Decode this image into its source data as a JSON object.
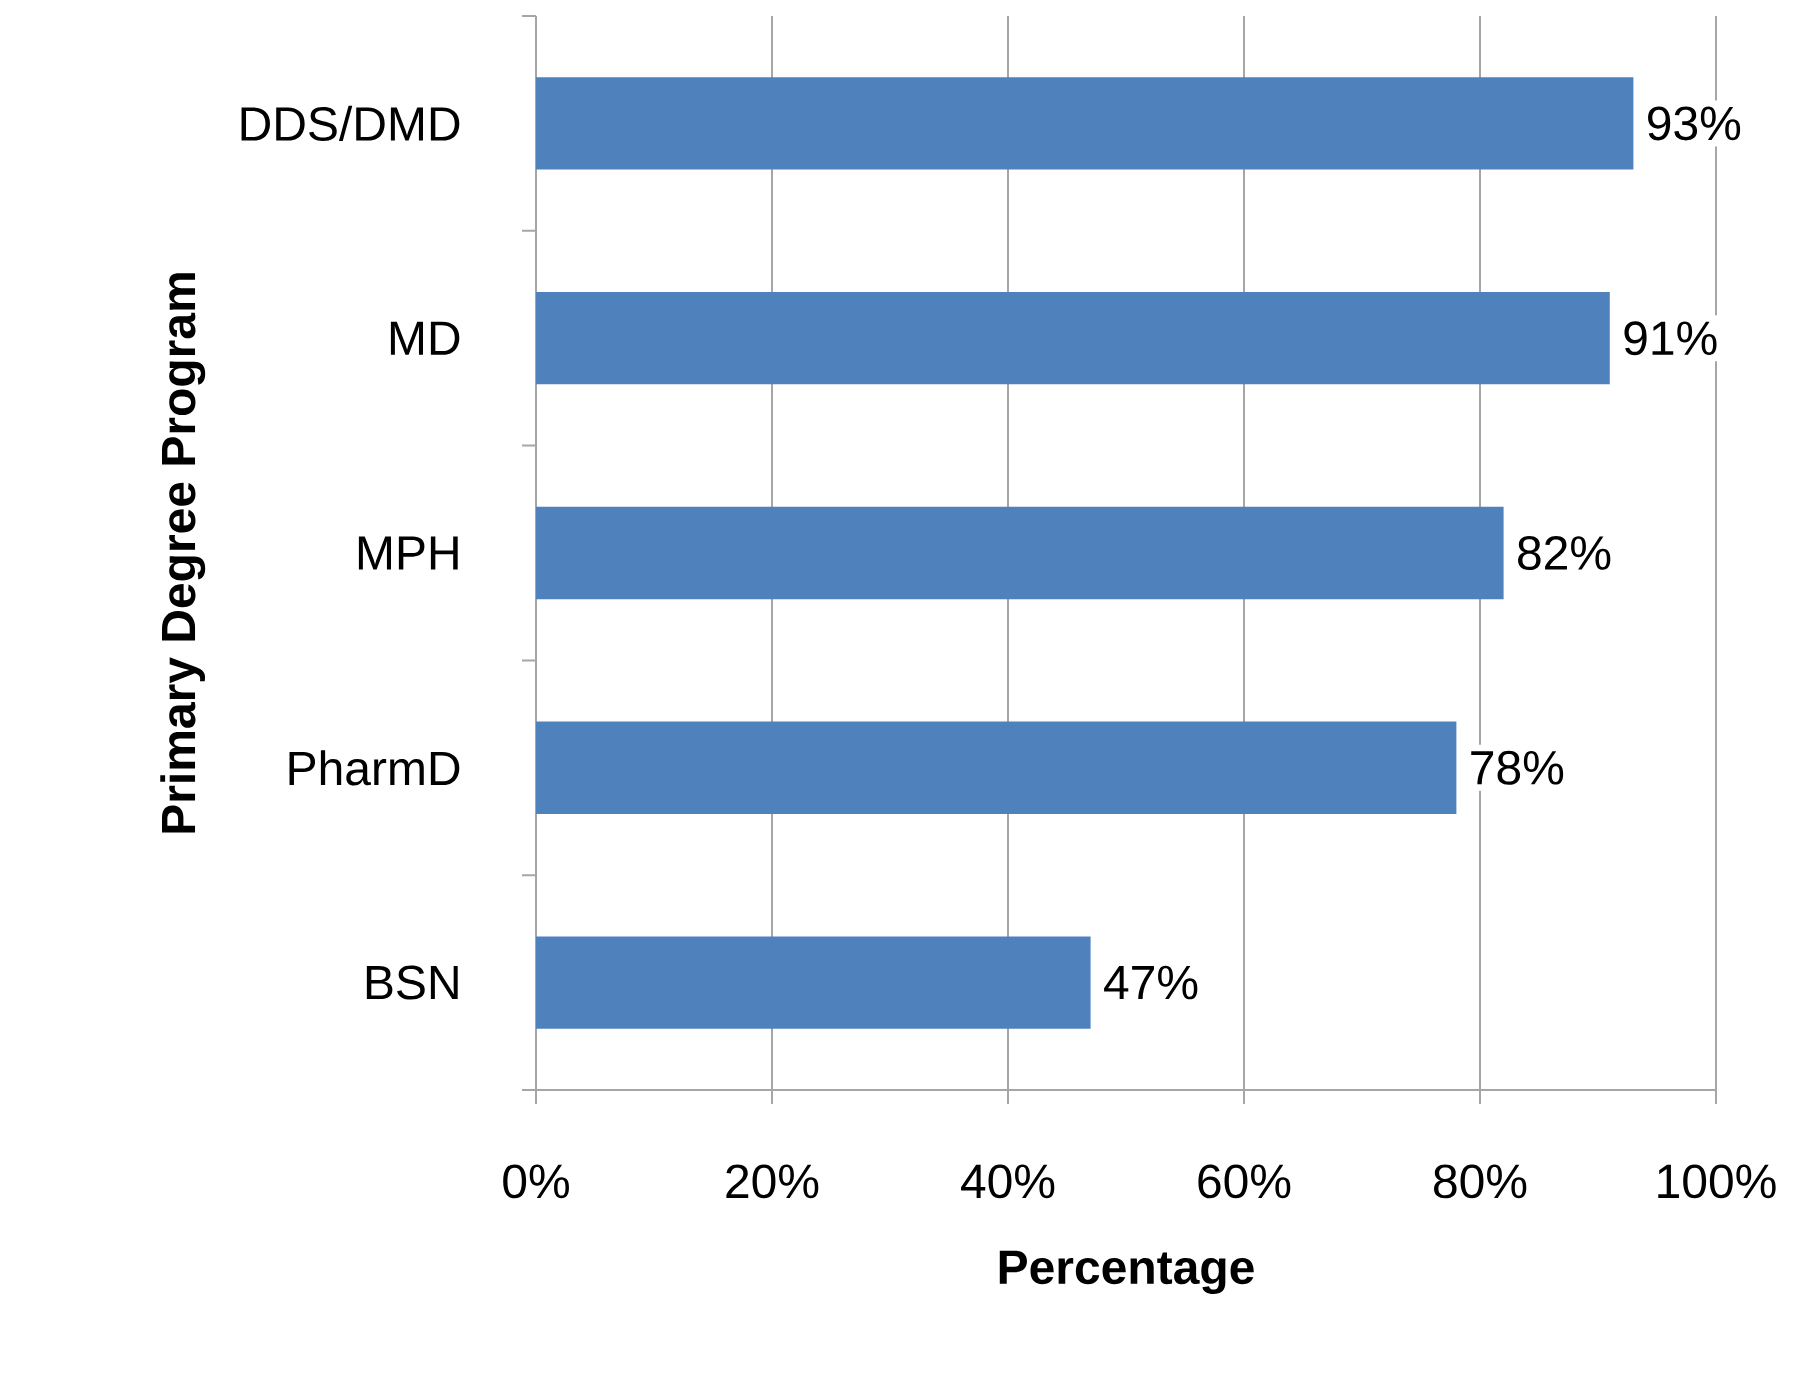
{
  "chart_data": {
    "type": "bar",
    "orientation": "horizontal",
    "xlabel": "Percentage",
    "ylabel": "Primary Degree Program",
    "categories": [
      "DDS/DMD",
      "MD",
      "MPH",
      "PharmD",
      "BSN"
    ],
    "values": [
      93,
      91,
      82,
      78,
      47
    ],
    "value_labels": [
      "93%",
      "91%",
      "82%",
      "78%",
      "47%"
    ],
    "color": "#4f81bd",
    "xlim": [
      0,
      100
    ],
    "xticks": [
      {
        "value": 0,
        "label": "0%"
      },
      {
        "value": 20,
        "label": "20%"
      },
      {
        "value": 40,
        "label": "40%"
      },
      {
        "value": 60,
        "label": "60%"
      },
      {
        "value": 80,
        "label": "80%"
      },
      {
        "value": 100,
        "label": "100%"
      }
    ],
    "grid": "x"
  }
}
